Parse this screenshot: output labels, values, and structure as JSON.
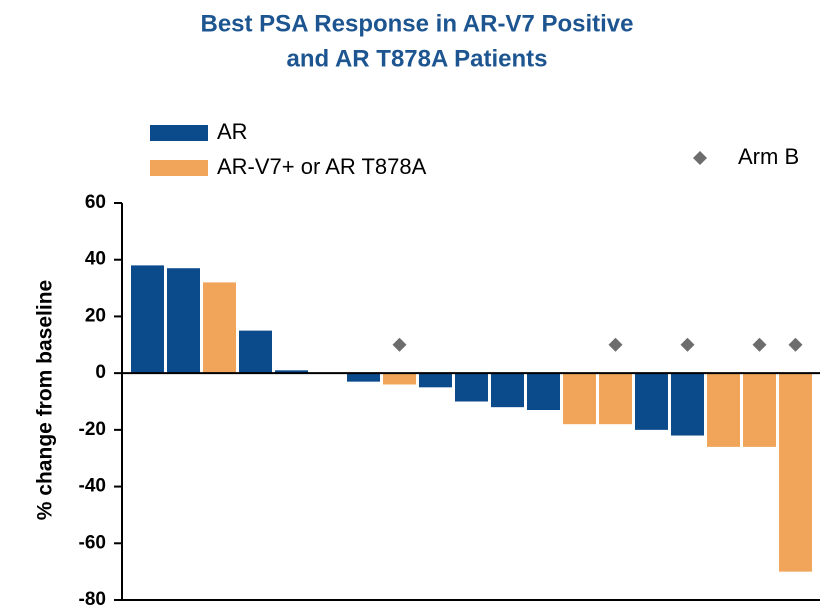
{
  "chart_data": {
    "type": "bar",
    "title": "Best PSA Response in AR-V7 Positive",
    "subtitle": "and AR T878A Patients",
    "y_label": "% change from baseline",
    "categories": [
      null,
      null,
      null,
      null,
      null,
      null,
      null,
      null,
      null,
      null,
      null,
      null,
      null,
      null,
      null,
      null,
      null,
      null,
      null
    ],
    "series": [
      {
        "name": "AR",
        "color": "#0b4a8b",
        "values": [
          38,
          37,
          null,
          15,
          1,
          null,
          -3,
          null,
          -5,
          -10,
          -12,
          -13,
          null,
          null,
          -20,
          -22,
          null,
          null,
          null
        ]
      },
      {
        "name": "AR-V7+  or AR T878A",
        "color": "#f0a55a",
        "values": [
          null,
          null,
          32,
          null,
          null,
          null,
          null,
          -4,
          null,
          null,
          null,
          null,
          -18,
          -18,
          null,
          null,
          -26,
          -26,
          -70
        ]
      },
      {
        "name": "Arm B",
        "type": "scatter",
        "marker": "diamond",
        "color": "#6d6d6d",
        "values": [
          null,
          null,
          null,
          null,
          null,
          null,
          null,
          10,
          null,
          null,
          null,
          null,
          null,
          10,
          null,
          10,
          null,
          10,
          10
        ]
      }
    ],
    "ylim": [
      -80,
      60
    ],
    "yticks": [
      -80,
      -60,
      -40,
      -20,
      0,
      20,
      40,
      60
    ],
    "grid": false
  }
}
